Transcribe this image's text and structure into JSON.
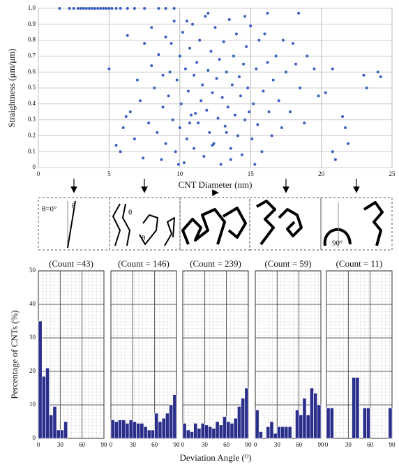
{
  "chart_data": [
    {
      "type": "scatter",
      "ylabel": "Straightness (μm/μm)",
      "xlabel": "CNT Diameter (nm)",
      "color": "#3a5fc4",
      "x": [
        1.5,
        2.2,
        2.5,
        2.8,
        3.0,
        3.2,
        3.4,
        3.6,
        3.8,
        4.0,
        4.2,
        4.4,
        4.6,
        4.8,
        5.0,
        5.2,
        5.5,
        5.8,
        6.3,
        6.8,
        7.5,
        8.5,
        9.0,
        9.6,
        5.0,
        5.5,
        5.8,
        6.0,
        6.2,
        6.5,
        6.8,
        6.3,
        7.0,
        7.2,
        7.5,
        7.8,
        7.4,
        8.0,
        8.2,
        8.4,
        8.5,
        8.7,
        8.8,
        9.0,
        9.0,
        9.2,
        9.3,
        9.5,
        9.6,
        9.7,
        9.8,
        10.0,
        10.0,
        10.1,
        10.2,
        10.3,
        10.4,
        10.5,
        10.6,
        10.7,
        10.8,
        10.9,
        11.0,
        11.0,
        11.2,
        11.3,
        11.4,
        11.5,
        11.6,
        11.7,
        11.8,
        11.9,
        12.0,
        12.1,
        12.2,
        12.3,
        12.4,
        12.5,
        12.6,
        12.7,
        12.8,
        12.9,
        13.0,
        13.1,
        13.2,
        13.3,
        13.4,
        13.5,
        13.6,
        13.7,
        13.8,
        13.9,
        14.0,
        14.1,
        14.2,
        14.3,
        14.4,
        14.5,
        14.6,
        14.7,
        14.8,
        15.0,
        15.1,
        15.2,
        15.4,
        15.5,
        15.6,
        15.8,
        15.9,
        16.0,
        16.2,
        16.3,
        16.5,
        16.6,
        16.8,
        17.0,
        17.2,
        17.5,
        17.8,
        18.0,
        18.2,
        18.4,
        18.5,
        18.8,
        19.0,
        19.5,
        19.8,
        20.3,
        20.8,
        20.8,
        21.0,
        21.5,
        21.7,
        21.9,
        23.0,
        23.2,
        24.0,
        24.2,
        12.0,
        14.6,
        16.2,
        8.0,
        9.4,
        10.5,
        17.3,
        15.3,
        9.9,
        13.6,
        12.3,
        11.1,
        14.9,
        10.7,
        13.3,
        8.8
      ],
      "values": [
        1,
        1,
        1,
        1,
        1,
        1,
        1,
        1,
        1,
        1,
        1,
        1,
        1,
        1,
        1,
        1,
        1,
        1,
        1,
        1,
        1,
        1,
        1,
        1,
        0.62,
        0.14,
        0.1,
        0.25,
        0.32,
        0.35,
        0.18,
        0.83,
        0.55,
        0.42,
        0.78,
        0.28,
        0.06,
        0.64,
        0.5,
        0.22,
        0.71,
        0.05,
        0.38,
        0.82,
        0.15,
        0.45,
        0.6,
        0.3,
        0.92,
        0.1,
        0.55,
        0.7,
        0.25,
        0.4,
        0.85,
        0.03,
        0.62,
        0.18,
        0.48,
        0.75,
        0.33,
        0.9,
        0.58,
        0.12,
        0.66,
        0.28,
        0.8,
        0.42,
        0.52,
        0.07,
        0.95,
        0.36,
        0.61,
        0.22,
        0.73,
        0.47,
        0.15,
        0.88,
        0.56,
        0.31,
        0.68,
        0.02,
        0.44,
        0.79,
        0.26,
        0.6,
        0.38,
        0.93,
        0.12,
        0.52,
        0.7,
        0.33,
        0.84,
        0.2,
        0.57,
        0.45,
        0.08,
        0.65,
        0.3,
        0.76,
        0.5,
        0.89,
        0.18,
        0.4,
        0.62,
        0.27,
        0.8,
        0.1,
        0.48,
        0.84,
        0.66,
        0.35,
        0.2,
        0.55,
        0.7,
        0.42,
        0.25,
        0.6,
        0.35,
        0.78,
        0.65,
        0.97,
        0.5,
        0.28,
        0.7,
        0.62,
        0.45,
        0.47,
        0.62,
        0.1,
        0.05,
        0.32,
        0.25,
        0.15,
        0.58,
        0.5,
        0.6,
        0.57,
        0.97,
        0.95,
        0.97,
        0.88,
        0.78,
        0.92,
        0.8,
        0.02,
        0.02,
        0.05,
        0.14,
        0.34,
        0.35,
        0.28,
        0.22,
        0.58
      ],
      "xlim": [
        0,
        25
      ],
      "xticks": [
        0,
        5,
        10,
        15,
        20,
        25
      ],
      "ylim": [
        0,
        1
      ],
      "yticks": [
        0,
        0.1,
        0.2,
        0.3,
        0.4,
        0.5,
        0.6,
        0.7,
        0.8,
        0.9,
        {
          "value": 1,
          "label": "1.0"
        }
      ],
      "grid": true
    },
    {
      "type": "histogram",
      "title": "(Count =43)",
      "ylabel": "Percentage of CNTs (%)",
      "color": "#2b2f8c",
      "bins": [
        0,
        5,
        10,
        15,
        20,
        25,
        30,
        35,
        40,
        45,
        50,
        55,
        60,
        65,
        70,
        75,
        80,
        85,
        90
      ],
      "values": [
        35,
        18.5,
        21,
        7,
        9.5,
        2.5,
        2.5,
        5,
        0,
        0,
        0,
        0,
        0,
        0,
        0,
        0,
        0,
        0
      ],
      "xlim": [
        0,
        90
      ],
      "xticks": [
        0,
        30,
        60,
        90
      ],
      "ylim": [
        0,
        50
      ],
      "yticks": [
        0,
        10,
        20,
        30,
        40,
        50
      ]
    },
    {
      "type": "histogram",
      "title": "(Count = 146)",
      "color": "#2b2f8c",
      "bins": [
        0,
        5,
        10,
        15,
        20,
        25,
        30,
        35,
        40,
        45,
        50,
        55,
        60,
        65,
        70,
        75,
        80,
        85,
        90
      ],
      "values": [
        5.5,
        5,
        5.5,
        5.5,
        4.5,
        5.5,
        5,
        4.5,
        4.5,
        3.5,
        2.5,
        2.5,
        7.5,
        5,
        6,
        7.5,
        10,
        13
      ],
      "xlim": [
        0,
        90
      ],
      "xticks": [
        0,
        30,
        60,
        90
      ]
    },
    {
      "type": "histogram",
      "title": "(Count = 239)",
      "xlabel": "Deviation Angle (ᴼ)",
      "color": "#2b2f8c",
      "bins": [
        0,
        5,
        10,
        15,
        20,
        25,
        30,
        35,
        40,
        45,
        50,
        55,
        60,
        65,
        70,
        75,
        80,
        85,
        90
      ],
      "values": [
        4.5,
        2.5,
        2,
        4.5,
        3,
        4.5,
        4,
        3.5,
        3,
        5,
        4,
        6.5,
        5,
        4.5,
        6,
        9.5,
        12,
        15
      ],
      "xlim": [
        0,
        90
      ],
      "xticks": [
        0,
        30,
        60,
        90
      ]
    },
    {
      "type": "histogram",
      "title": "(Count = 59)",
      "color": "#2b2f8c",
      "bins": [
        0,
        5,
        10,
        15,
        20,
        25,
        30,
        35,
        40,
        45,
        50,
        55,
        60,
        65,
        70,
        75,
        80,
        85,
        90
      ],
      "values": [
        8.5,
        2,
        0,
        3.5,
        5,
        1.5,
        3.5,
        3.5,
        3.5,
        3.5,
        0,
        8.5,
        7,
        12,
        7,
        15,
        13.5,
        10
      ],
      "xlim": [
        0,
        90
      ],
      "xticks": [
        0,
        30,
        60,
        90
      ]
    },
    {
      "type": "histogram",
      "title": "(Count = 11)",
      "color": "#2b2f8c",
      "bins": [
        0,
        5,
        10,
        15,
        20,
        25,
        30,
        35,
        40,
        45,
        50,
        55,
        60,
        65,
        70,
        75,
        80,
        85,
        90
      ],
      "values": [
        9.1,
        9.1,
        0,
        0,
        0,
        0,
        0,
        18.2,
        18.2,
        0,
        9.1,
        9.1,
        0,
        0,
        0,
        0,
        0,
        9.1
      ],
      "xlim": [
        0,
        90
      ],
      "xticks": [
        0,
        30,
        60,
        90
      ]
    }
  ],
  "diagram": {
    "labels": [
      "θ=0°",
      "θ",
      "θ",
      "θ",
      "90°"
    ]
  }
}
